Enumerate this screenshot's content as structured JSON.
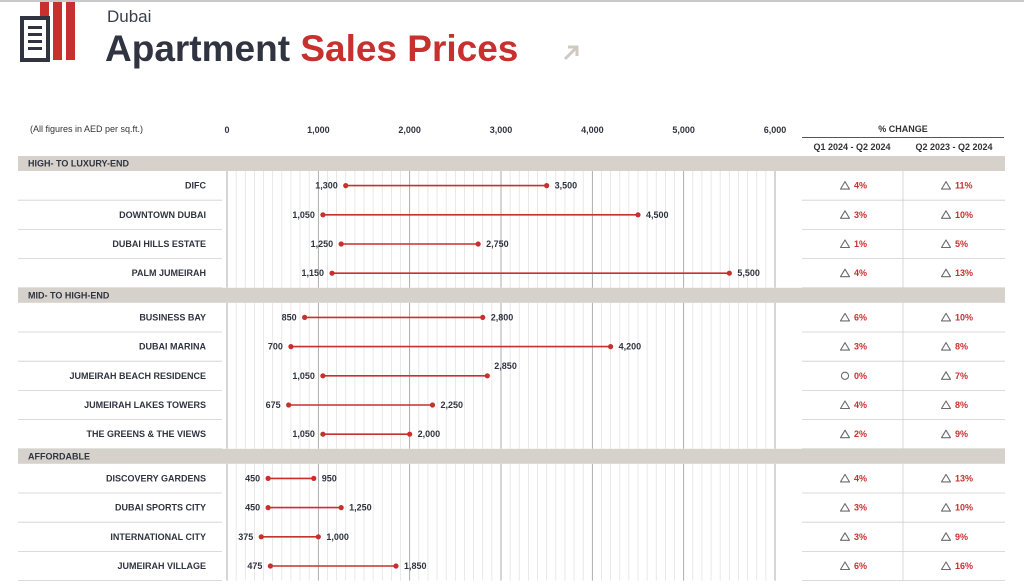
{
  "header": {
    "city": "Dubai",
    "title_main": "Apartment",
    "title_accent": "Sales Prices",
    "units_note": "(All figures in AED per sq.ft.)",
    "change_header": "% CHANGE",
    "change_col1": "Q1 2024 - Q2 2024",
    "change_col2": "Q2 2023 - Q2 2024"
  },
  "colors": {
    "accent": "#c8302e",
    "text": "#2f3440",
    "band": "#d6d1cb"
  },
  "icons": {
    "logo": "building-logo-icon",
    "arrow": "arrow-up-right-icon",
    "up": "triangle-up-icon",
    "flat": "circle-icon"
  },
  "chart_data": {
    "type": "dumbbell",
    "xlim": [
      0,
      6000
    ],
    "xticks": [
      0,
      1000,
      2000,
      3000,
      4000,
      5000,
      6000
    ],
    "xtick_labels": [
      "0",
      "1,000",
      "2,000",
      "3,000",
      "4,000",
      "5,000",
      "6,000"
    ],
    "groups": [
      {
        "name": "HIGH- TO LUXURY-END",
        "rows": [
          {
            "name": "DIFC",
            "min": 1300,
            "max": 3500,
            "min_label": "1,300",
            "max_label": "3,500",
            "qoq": "4%",
            "qoq_dir": "up",
            "yoy": "11%",
            "yoy_dir": "up"
          },
          {
            "name": "DOWNTOWN DUBAI",
            "min": 1050,
            "max": 4500,
            "min_label": "1,050",
            "max_label": "4,500",
            "qoq": "3%",
            "qoq_dir": "up",
            "yoy": "10%",
            "yoy_dir": "up"
          },
          {
            "name": "DUBAI HILLS ESTATE",
            "min": 1250,
            "max": 2750,
            "min_label": "1,250",
            "max_label": "2,750",
            "qoq": "1%",
            "qoq_dir": "up",
            "yoy": "5%",
            "yoy_dir": "up"
          },
          {
            "name": "PALM JUMEIRAH",
            "min": 1150,
            "max": 5500,
            "min_label": "1,150",
            "max_label": "5,500",
            "qoq": "4%",
            "qoq_dir": "up",
            "yoy": "13%",
            "yoy_dir": "up"
          }
        ]
      },
      {
        "name": "MID- TO HIGH-END",
        "rows": [
          {
            "name": "BUSINESS BAY",
            "min": 850,
            "max": 2800,
            "min_label": "850",
            "max_label": "2,800",
            "qoq": "6%",
            "qoq_dir": "up",
            "yoy": "10%",
            "yoy_dir": "up"
          },
          {
            "name": "DUBAI MARINA",
            "min": 700,
            "max": 4200,
            "min_label": "700",
            "max_label": "4,200",
            "qoq": "3%",
            "qoq_dir": "up",
            "yoy": "8%",
            "yoy_dir": "up"
          },
          {
            "name": "JUMEIRAH BEACH RESIDENCE",
            "min": 1050,
            "max": 2850,
            "min_label": "1,050",
            "max_label": "2,850",
            "qoq": "0%",
            "qoq_dir": "flat",
            "yoy": "7%",
            "yoy_dir": "up"
          },
          {
            "name": "JUMEIRAH LAKES TOWERS",
            "min": 675,
            "max": 2250,
            "min_label": "675",
            "max_label": "2,250",
            "qoq": "4%",
            "qoq_dir": "up",
            "yoy": "8%",
            "yoy_dir": "up"
          },
          {
            "name": "THE GREENS & THE VIEWS",
            "min": 1050,
            "max": 2000,
            "min_label": "1,050",
            "max_label": "2,000",
            "qoq": "2%",
            "qoq_dir": "up",
            "yoy": "9%",
            "yoy_dir": "up"
          }
        ]
      },
      {
        "name": "AFFORDABLE",
        "rows": [
          {
            "name": "DISCOVERY GARDENS",
            "min": 450,
            "max": 950,
            "min_label": "450",
            "max_label": "950",
            "qoq": "4%",
            "qoq_dir": "up",
            "yoy": "13%",
            "yoy_dir": "up"
          },
          {
            "name": "DUBAI SPORTS CITY",
            "min": 450,
            "max": 1250,
            "min_label": "450",
            "max_label": "1,250",
            "qoq": "3%",
            "qoq_dir": "up",
            "yoy": "10%",
            "yoy_dir": "up"
          },
          {
            "name": "INTERNATIONAL CITY",
            "min": 375,
            "max": 1000,
            "min_label": "375",
            "max_label": "1,000",
            "qoq": "3%",
            "qoq_dir": "up",
            "yoy": "9%",
            "yoy_dir": "up"
          },
          {
            "name": "JUMEIRAH VILLAGE",
            "min": 475,
            "max": 1850,
            "min_label": "475",
            "max_label": "1,850",
            "qoq": "6%",
            "qoq_dir": "up",
            "yoy": "16%",
            "yoy_dir": "up"
          }
        ]
      }
    ]
  }
}
